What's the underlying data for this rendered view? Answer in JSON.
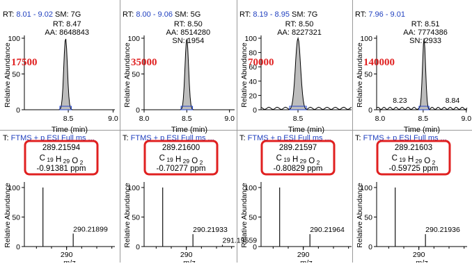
{
  "colors": {
    "grid": "#999999",
    "peak_fill": "#bdbdbd",
    "box": "#2244cc",
    "red_label": "#e02020",
    "rect": "#e02020",
    "blue_text": "#1f3fbf",
    "spectrum": "#111111"
  },
  "text": {
    "ylabel": "Relative Abundance",
    "xlabel_chrom": "Time (min)",
    "xlabel_ms": "m/z",
    "rt_prefix": "RT: ",
    "sm_prefix": "SM: ",
    "t_prefix": "T: ",
    "scan_filter": "FTMS + p ESI Full ms ...",
    "formula_c": "C",
    "formula_h": "H",
    "formula_o": "O",
    "formula_c_sub": "19",
    "formula_h_sub": "29",
    "formula_o_sub": "2"
  },
  "chart_data": [
    {
      "type": "line",
      "panel": "chromatogram-1",
      "rt_range": "8.01 - 9.02",
      "sm": "7G",
      "peak_label": [
        "RT: 8.47",
        "AA: 8648843"
      ],
      "red_label": "17500",
      "xlim": [
        8.01,
        9.02
      ],
      "ylim": [
        0,
        100
      ],
      "xticks": [
        "8.5",
        "9.0"
      ],
      "yticks": [
        "0",
        "50",
        "100"
      ],
      "peak_rt": 8.47,
      "peak_sigma": 0.02,
      "small_labels": []
    },
    {
      "type": "line",
      "panel": "chromatogram-2",
      "rt_range": "8.00 - 9.06",
      "sm": "5G",
      "peak_label": [
        "RT: 8.50",
        "AA: 8514280",
        "SN: 1954"
      ],
      "red_label": "35000",
      "xlim": [
        8.0,
        9.06
      ],
      "ylim": [
        0,
        100
      ],
      "xticks": [
        "8.0",
        "8.5",
        "9.0"
      ],
      "yticks": [
        "0",
        "50",
        "100"
      ],
      "peak_rt": 8.5,
      "peak_sigma": 0.021,
      "small_labels": []
    },
    {
      "type": "line",
      "panel": "chromatogram-3",
      "rt_range": "8.19 - 8.95",
      "sm": "7G",
      "peak_label": [
        "RT: 8.50",
        "AA: 8227321"
      ],
      "red_label": "70000",
      "xlim": [
        8.19,
        8.95
      ],
      "ylim": [
        0,
        100
      ],
      "xticks": [
        "8.5"
      ],
      "yticks": [
        "0",
        "20",
        "40",
        "60",
        "80",
        "100"
      ],
      "peak_rt": 8.5,
      "peak_sigma": 0.022,
      "small_labels": []
    },
    {
      "type": "line",
      "panel": "chromatogram-4",
      "rt_range": "7.96 - 9.01",
      "sm": "",
      "peak_label": [
        "RT: 8.51",
        "AA: 7774386",
        "SN: 2933"
      ],
      "red_label": "140000",
      "xlim": [
        7.96,
        9.01
      ],
      "ylim": [
        0,
        100
      ],
      "xticks": [
        "8.0",
        "8.5",
        "9.0"
      ],
      "yticks": [
        "0",
        "50",
        "100"
      ],
      "peak_rt": 8.51,
      "peak_sigma": 0.018,
      "small_labels": [
        {
          "text": "8.23",
          "x": 8.23,
          "y": 6
        },
        {
          "text": "8.84",
          "x": 8.84,
          "y": 6
        }
      ]
    },
    {
      "type": "bar",
      "panel": "spectrum-1",
      "main_mz": "289.21594",
      "ppm": "-0.91381 ppm",
      "xlim": [
        288.6,
        291.6
      ],
      "ylim": [
        0,
        100
      ],
      "xticks": [
        "290"
      ],
      "yticks": [
        "0",
        "50",
        "100"
      ],
      "peaks": [
        {
          "mz": 289.216,
          "intensity": 100,
          "label": ""
        },
        {
          "mz": 290.219,
          "intensity": 22,
          "label": "290.21899"
        }
      ]
    },
    {
      "type": "bar",
      "panel": "spectrum-2",
      "main_mz": "289.21600",
      "ppm": "-0.70277 ppm",
      "xlim": [
        288.6,
        291.6
      ],
      "ylim": [
        0,
        100
      ],
      "xticks": [
        "290"
      ],
      "yticks": [
        "0",
        "50",
        "100"
      ],
      "peaks": [
        {
          "mz": 289.216,
          "intensity": 100,
          "label": ""
        },
        {
          "mz": 290.219,
          "intensity": 21,
          "label": "290.21933"
        },
        {
          "mz": 291.196,
          "intensity": 3,
          "label": "291.19559"
        }
      ]
    },
    {
      "type": "bar",
      "panel": "spectrum-3",
      "main_mz": "289.21597",
      "ppm": "-0.80829 ppm",
      "xlim": [
        288.6,
        291.6
      ],
      "ylim": [
        0,
        100
      ],
      "xticks": [
        "290"
      ],
      "yticks": [
        "0",
        "50",
        "100"
      ],
      "peaks": [
        {
          "mz": 289.216,
          "intensity": 100,
          "label": ""
        },
        {
          "mz": 290.22,
          "intensity": 21,
          "label": "290.21964"
        }
      ]
    },
    {
      "type": "bar",
      "panel": "spectrum-4",
      "main_mz": "289.21603",
      "ppm": "-0.59725 ppm",
      "xlim": [
        288.6,
        291.6
      ],
      "ylim": [
        0,
        100
      ],
      "xticks": [
        "290"
      ],
      "yticks": [
        "0",
        "50",
        "100"
      ],
      "peaks": [
        {
          "mz": 289.216,
          "intensity": 100,
          "label": ""
        },
        {
          "mz": 290.219,
          "intensity": 21,
          "label": "290.21936"
        }
      ]
    }
  ]
}
